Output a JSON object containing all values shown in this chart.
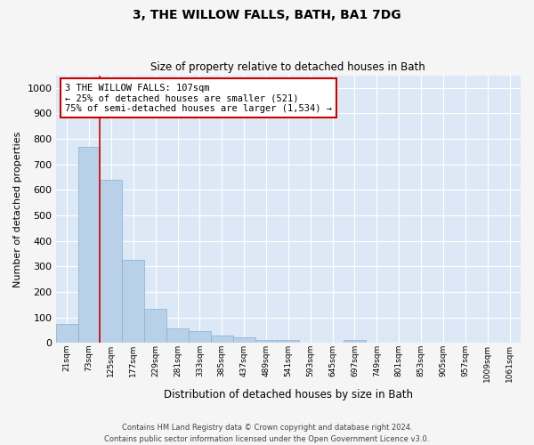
{
  "title": "3, THE WILLOW FALLS, BATH, BA1 7DG",
  "subtitle": "Size of property relative to detached houses in Bath",
  "xlabel": "Distribution of detached houses by size in Bath",
  "ylabel": "Number of detached properties",
  "bar_labels": [
    "21sqm",
    "73sqm",
    "125sqm",
    "177sqm",
    "229sqm",
    "281sqm",
    "333sqm",
    "385sqm",
    "437sqm",
    "489sqm",
    "541sqm",
    "593sqm",
    "645sqm",
    "697sqm",
    "749sqm",
    "801sqm",
    "853sqm",
    "905sqm",
    "957sqm",
    "1009sqm",
    "1061sqm"
  ],
  "bar_values": [
    75,
    770,
    640,
    325,
    135,
    55,
    45,
    30,
    20,
    10,
    12,
    0,
    0,
    10,
    0,
    0,
    0,
    0,
    0,
    0,
    0
  ],
  "bar_color": "#b8d0e8",
  "bar_edge_color": "#8aafd0",
  "background_color": "#dce8f5",
  "grid_color": "#ffffff",
  "red_line_color": "#cc0000",
  "annotation_text": "3 THE WILLOW FALLS: 107sqm\n← 25% of detached houses are smaller (521)\n75% of semi-detached houses are larger (1,534) →",
  "annotation_box_facecolor": "#ffffff",
  "annotation_box_edgecolor": "#cc0000",
  "ylim": [
    0,
    1050
  ],
  "yticks": [
    0,
    100,
    200,
    300,
    400,
    500,
    600,
    700,
    800,
    900,
    1000
  ],
  "footer_line1": "Contains HM Land Registry data © Crown copyright and database right 2024.",
  "footer_line2": "Contains public sector information licensed under the Open Government Licence v3.0.",
  "fig_width": 6.0,
  "fig_height": 5.0,
  "dpi": 100
}
